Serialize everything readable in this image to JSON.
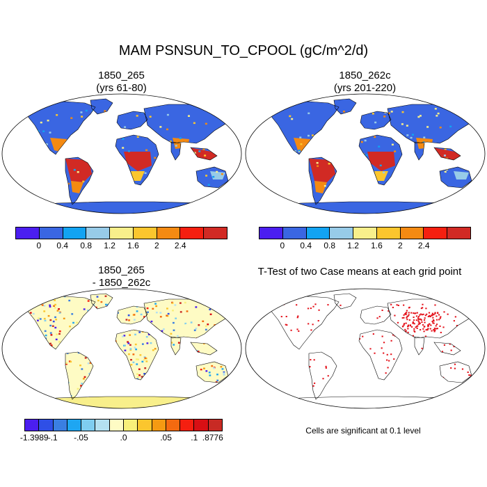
{
  "title": "MAM PSNSUN_TO_CPOOL (gC/m^2/d)",
  "panels": {
    "p1": {
      "line1": "1850_265",
      "line2": "(yrs 61-80)"
    },
    "p2": {
      "line1": "1850_262c",
      "line2": "(yrs 201-220)"
    },
    "p3": {
      "line1": "1850_265",
      "line2": "- 1850_262c"
    },
    "p4": {
      "line1": "T-Test of two Case means at each grid point"
    }
  },
  "colorbars": {
    "absolute": {
      "colors": [
        "#4b1ef0",
        "#3a66e2",
        "#12a3f2",
        "#97cbe8",
        "#f8ef8b",
        "#fbc62e",
        "#f48a12",
        "#f51f10",
        "#d12a24"
      ],
      "ticks": [
        "0",
        "0.4",
        "0.8",
        "1.2",
        "1.6",
        "2",
        "2.4"
      ]
    },
    "difference": {
      "colors": [
        "#4b1ef0",
        "#2f4fe6",
        "#3a7fe2",
        "#1ea6f2",
        "#7fcdf0",
        "#b4e0f0",
        "#fefbc4",
        "#f8ef7a",
        "#fbc62e",
        "#f59a12",
        "#f46a10",
        "#f51f10",
        "#d80f14",
        "#c82a24"
      ],
      "ticks": [
        "-1.3989",
        "-.1",
        "-.05",
        ".0",
        ".05",
        ".1",
        ".8776"
      ]
    }
  },
  "map_colors": {
    "ocean": "#ffffff",
    "land_low": "#3a66e2",
    "tropics": "#d12a24",
    "subtropics": "#f48a12",
    "diff_base": "#fefbc4",
    "significant": "#e4111a"
  },
  "significance_note": "Cells are significant at 0.1 level"
}
